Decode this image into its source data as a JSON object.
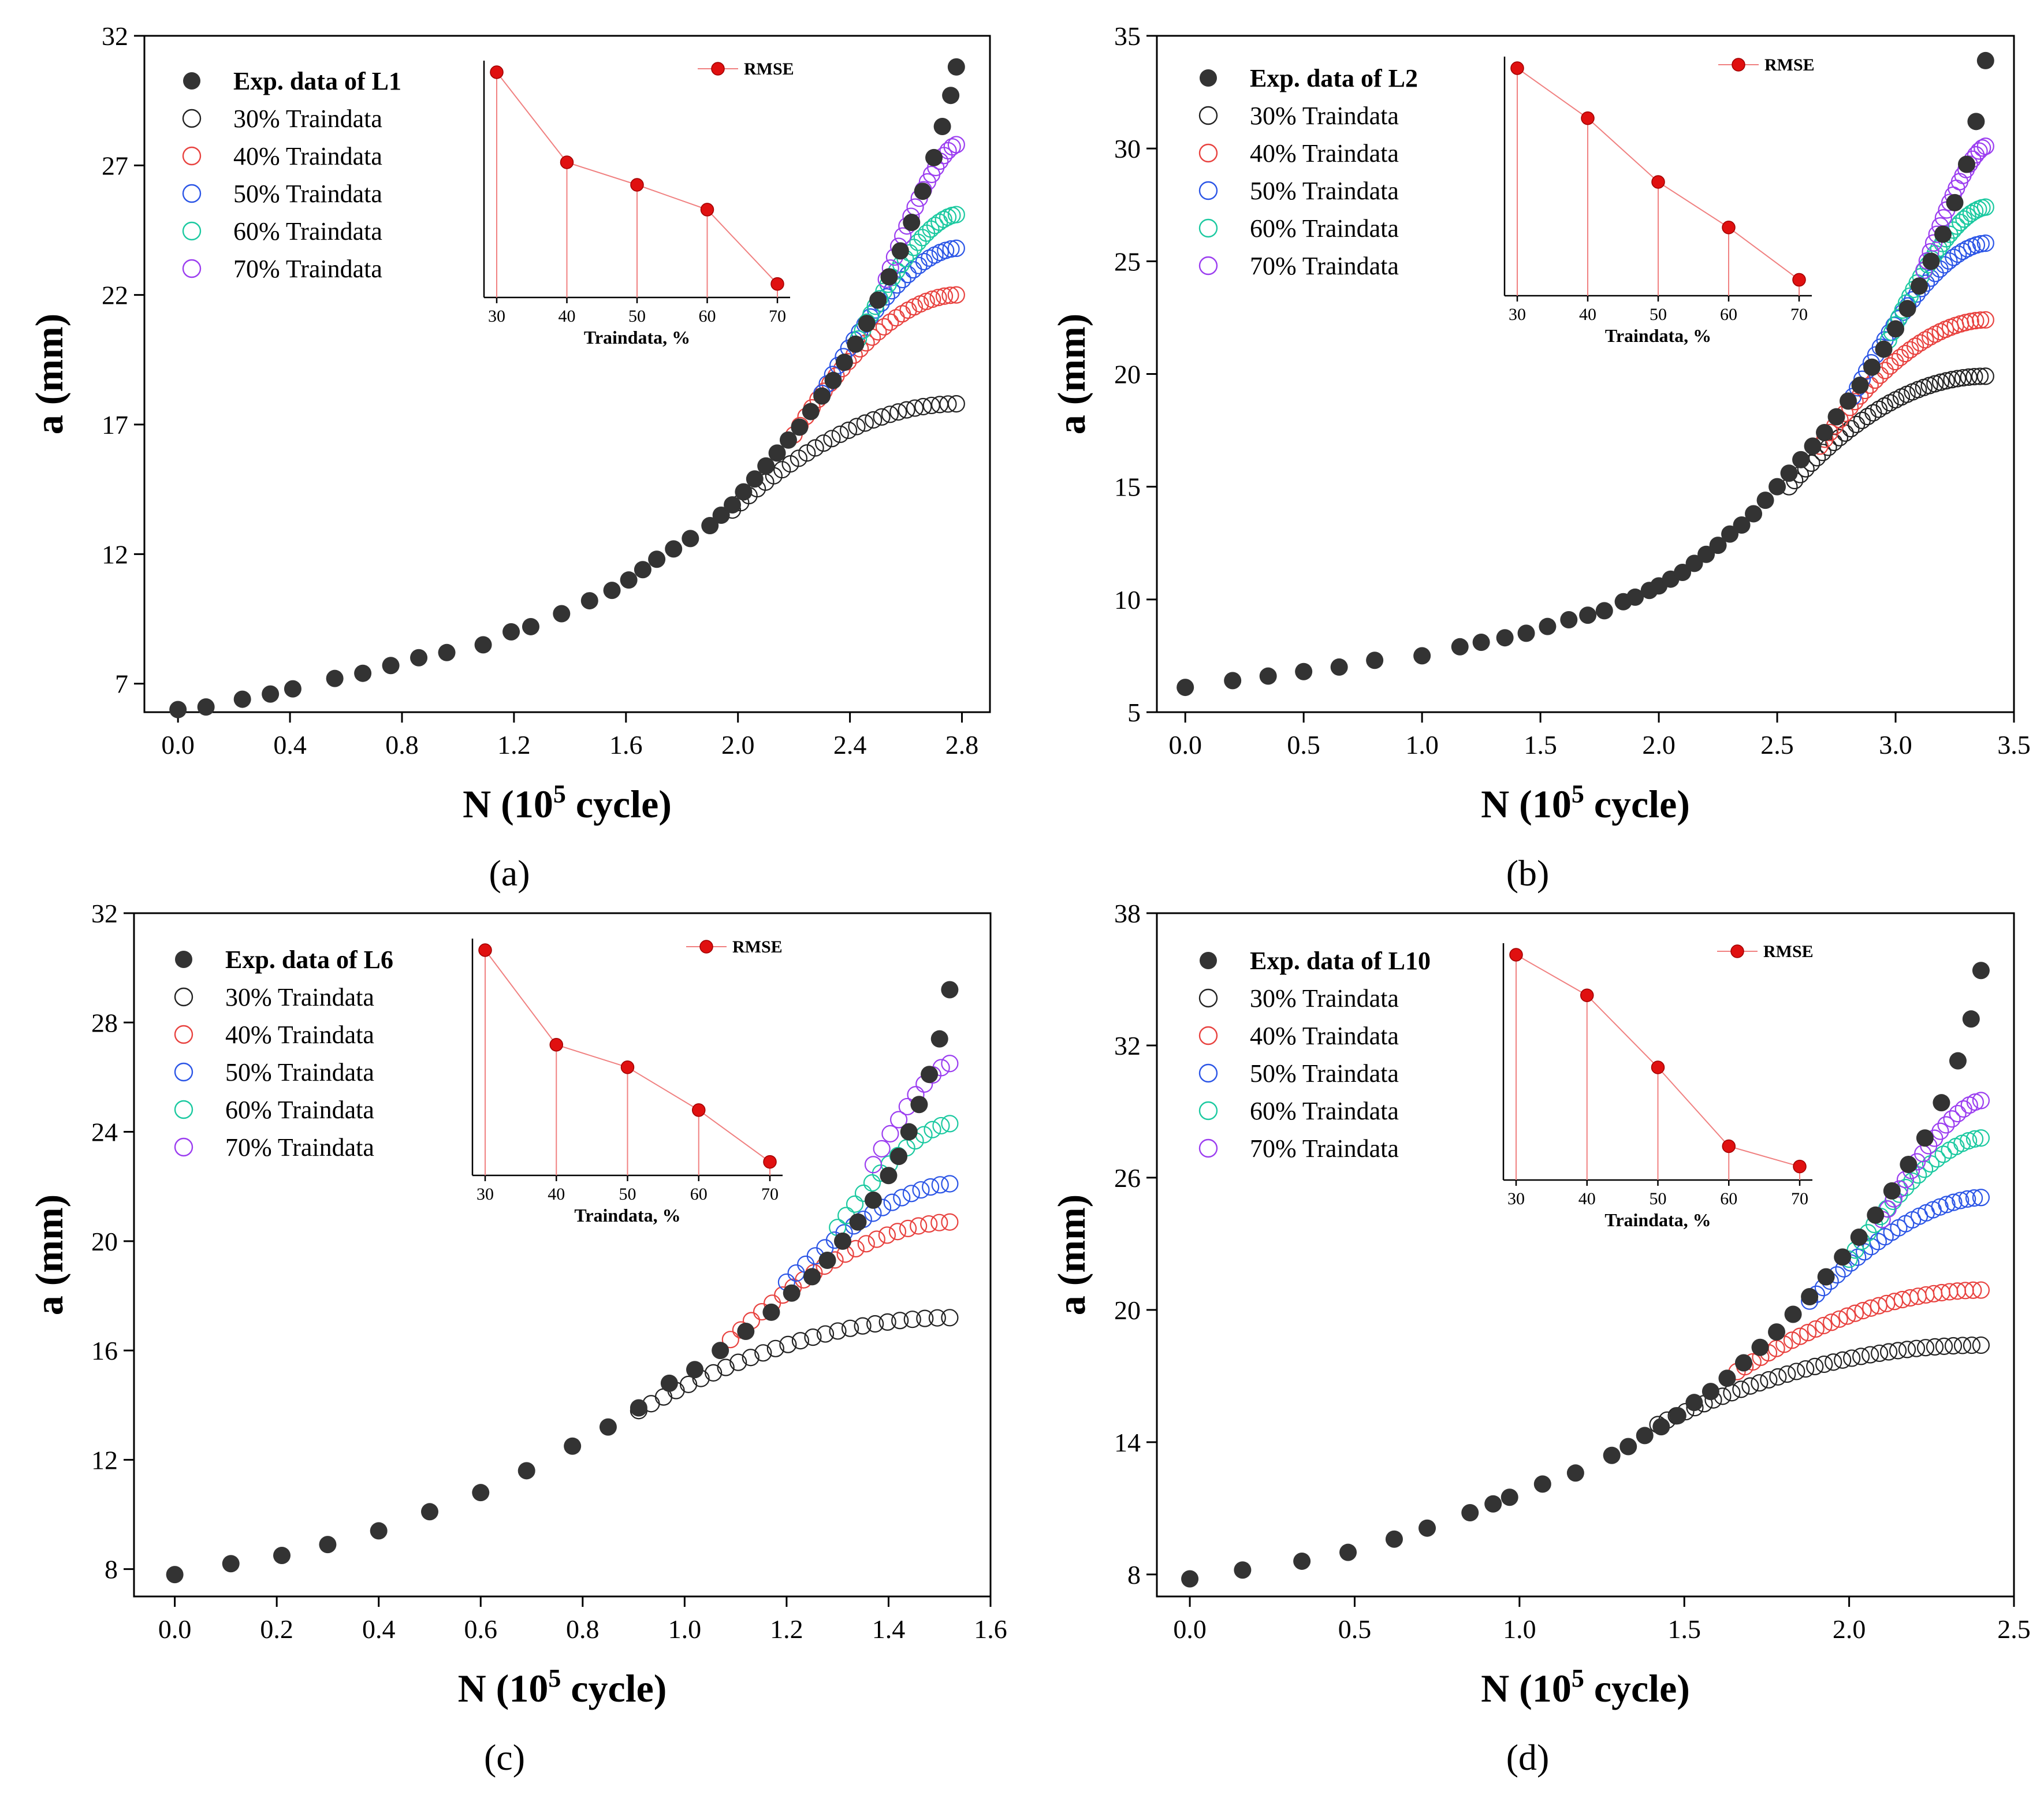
{
  "chart_data": [
    {
      "id": "a",
      "type": "scatter",
      "caption": "(a)",
      "xlabel": "N (10",
      "xlabel_sup": "5",
      "xlabel_end": " cycle)",
      "ylabel": "a (mm)",
      "xlim": [
        -0.12,
        2.9
      ],
      "ylim": [
        5.9,
        32
      ],
      "xticks": [
        0.0,
        0.4,
        0.8,
        1.2,
        1.6,
        2.0,
        2.4,
        2.8
      ],
      "xtick_labels": [
        "0.0",
        "0.4",
        "0.8",
        "1.2",
        "1.6",
        "2.0",
        "2.4",
        "2.8"
      ],
      "yticks": [
        7,
        12,
        17,
        22,
        27,
        32
      ],
      "ytick_labels": [
        "7",
        "12",
        "17",
        "22",
        "27",
        "32"
      ],
      "legend": [
        {
          "label": "Exp. data of L1",
          "color": "#333333",
          "filled": true,
          "bold": true
        },
        {
          "label": "30%  Traindata",
          "color": "#222222",
          "filled": false
        },
        {
          "label": "40%  Traindata",
          "color": "#e8423f",
          "filled": false
        },
        {
          "label": "50%  Traindata",
          "color": "#2b55e6",
          "filled": false
        },
        {
          "label": "60%  Traindata",
          "color": "#1bc9a0",
          "filled": false
        },
        {
          "label": "70%  Traindata",
          "color": "#9b3df0",
          "filled": false
        }
      ],
      "exp": {
        "x": [
          0,
          0.1,
          0.23,
          0.33,
          0.41,
          0.56,
          0.66,
          0.76,
          0.86,
          0.96,
          1.09,
          1.19,
          1.26,
          1.37,
          1.47,
          1.55,
          1.61,
          1.66,
          1.71,
          1.77,
          1.83,
          1.9,
          1.94,
          1.98,
          2.02,
          2.06,
          2.1,
          2.14,
          2.18,
          2.22,
          2.26,
          2.3,
          2.34,
          2.38,
          2.42,
          2.46,
          2.5,
          2.54,
          2.58,
          2.62,
          2.66,
          2.7,
          2.73,
          2.76,
          2.78
        ],
        "y": [
          6.0,
          6.1,
          6.4,
          6.6,
          6.8,
          7.2,
          7.4,
          7.7,
          8.0,
          8.2,
          8.5,
          9.0,
          9.2,
          9.7,
          10.2,
          10.6,
          11.0,
          11.4,
          11.8,
          12.2,
          12.6,
          13.1,
          13.5,
          13.9,
          14.4,
          14.9,
          15.4,
          15.9,
          16.4,
          16.9,
          17.5,
          18.1,
          18.7,
          19.4,
          20.1,
          20.9,
          21.8,
          22.7,
          23.7,
          24.8,
          26.0,
          27.3,
          28.5,
          29.7,
          30.8
        ]
      },
      "series": [
        {
          "name": "30%  Traindata",
          "start": 1.98,
          "end": 2.78,
          "y0": 13.7,
          "y1": 17.8,
          "curv": 0.6,
          "n": 28
        },
        {
          "name": "40%  Traindata",
          "start": 2.2,
          "end": 2.78,
          "y0": 16.6,
          "y1": 22.0,
          "curv": 0.55,
          "n": 28
        },
        {
          "name": "50%  Traindata",
          "start": 2.3,
          "end": 2.78,
          "y0": 18.2,
          "y1": 23.8,
          "curv": 0.45,
          "n": 26
        },
        {
          "name": "60%  Traindata",
          "start": 2.43,
          "end": 2.78,
          "y0": 20.3,
          "y1": 25.1,
          "curv": 0.4,
          "n": 24
        },
        {
          "name": "70%  Traindata",
          "start": 2.53,
          "end": 2.78,
          "y0": 22.6,
          "y1": 27.8,
          "curv": 0.3,
          "n": 18
        }
      ],
      "inset": {
        "legend_label": "RMSE",
        "xlabel": "Traindata, %",
        "x": [
          30,
          40,
          50,
          60,
          70
        ],
        "xtick_labels": [
          "30",
          "40",
          "50",
          "60",
          "70"
        ],
        "values": [
          1.0,
          0.6,
          0.5,
          0.39,
          0.06
        ]
      }
    },
    {
      "id": "b",
      "type": "scatter",
      "caption": "(b)",
      "xlabel": "N (10",
      "xlabel_sup": "5",
      "xlabel_end": " cycle)",
      "ylabel": "a (mm)",
      "xlim": [
        -0.12,
        3.5
      ],
      "ylim": [
        5,
        35
      ],
      "xticks": [
        0.0,
        0.5,
        1.0,
        1.5,
        2.0,
        2.5,
        3.0,
        3.5
      ],
      "xtick_labels": [
        "0.0",
        "0.5",
        "1.0",
        "1.5",
        "2.0",
        "2.5",
        "3.0",
        "3.5"
      ],
      "yticks": [
        5,
        10,
        15,
        20,
        25,
        30,
        35
      ],
      "ytick_labels": [
        "5",
        "10",
        "15",
        "20",
        "25",
        "30",
        "35"
      ],
      "legend": [
        {
          "label": "Exp. data of L2",
          "color": "#333333",
          "filled": true,
          "bold": true
        },
        {
          "label": "30%  Traindata",
          "color": "#222222",
          "filled": false
        },
        {
          "label": "40%  Traindata",
          "color": "#e8423f",
          "filled": false
        },
        {
          "label": "50%  Traindata",
          "color": "#2b55e6",
          "filled": false
        },
        {
          "label": "60%  Traindata",
          "color": "#1bc9a0",
          "filled": false
        },
        {
          "label": "70%  Traindata",
          "color": "#9b3df0",
          "filled": false
        }
      ],
      "exp": {
        "x": [
          0,
          0.2,
          0.35,
          0.5,
          0.65,
          0.8,
          1.0,
          1.16,
          1.25,
          1.35,
          1.44,
          1.53,
          1.62,
          1.7,
          1.77,
          1.85,
          1.9,
          1.96,
          2.0,
          2.05,
          2.1,
          2.15,
          2.2,
          2.25,
          2.3,
          2.35,
          2.4,
          2.45,
          2.5,
          2.55,
          2.6,
          2.65,
          2.7,
          2.75,
          2.8,
          2.85,
          2.9,
          2.95,
          3.0,
          3.05,
          3.1,
          3.15,
          3.2,
          3.25,
          3.3,
          3.34,
          3.38
        ],
        "y": [
          6.1,
          6.4,
          6.6,
          6.8,
          7.0,
          7.3,
          7.5,
          7.9,
          8.1,
          8.3,
          8.5,
          8.8,
          9.1,
          9.3,
          9.5,
          9.9,
          10.1,
          10.4,
          10.6,
          10.9,
          11.2,
          11.6,
          12.0,
          12.4,
          12.9,
          13.3,
          13.8,
          14.4,
          15.0,
          15.6,
          16.2,
          16.8,
          17.4,
          18.1,
          18.8,
          19.5,
          20.3,
          21.1,
          22.0,
          22.9,
          23.9,
          25.0,
          26.2,
          27.6,
          29.3,
          31.2,
          33.9
        ]
      },
      "series": [
        {
          "name": "30%  Traindata",
          "start": 2.55,
          "end": 3.38,
          "y0": 15.0,
          "y1": 19.9,
          "curv": 0.65,
          "n": 36
        },
        {
          "name": "40%  Traindata",
          "start": 2.68,
          "end": 3.38,
          "y0": 16.8,
          "y1": 22.4,
          "curv": 0.55,
          "n": 34
        },
        {
          "name": "50%  Traindata",
          "start": 2.82,
          "end": 3.38,
          "y0": 19.0,
          "y1": 25.8,
          "curv": 0.45,
          "n": 30
        },
        {
          "name": "60%  Traindata",
          "start": 2.97,
          "end": 3.38,
          "y0": 21.5,
          "y1": 27.4,
          "curv": 0.4,
          "n": 28
        },
        {
          "name": "70%  Traindata",
          "start": 3.12,
          "end": 3.38,
          "y0": 24.6,
          "y1": 30.1,
          "curv": 0.3,
          "n": 20
        }
      ],
      "inset": {
        "legend_label": "RMSE",
        "xlabel": "Traindata, %",
        "x": [
          30,
          40,
          50,
          60,
          70
        ],
        "xtick_labels": [
          "30",
          "40",
          "50",
          "60",
          "70"
        ],
        "values": [
          1.0,
          0.78,
          0.5,
          0.3,
          0.07
        ]
      }
    },
    {
      "id": "c",
      "type": "scatter",
      "caption": "(c)",
      "xlabel": "N (10",
      "xlabel_sup": "5",
      "xlabel_end": " cycle)",
      "ylabel": "a (mm)",
      "xlim": [
        -0.08,
        1.6
      ],
      "ylim": [
        7,
        32
      ],
      "xticks": [
        0.0,
        0.2,
        0.4,
        0.6,
        0.8,
        1.0,
        1.2,
        1.4,
        1.6
      ],
      "xtick_labels": [
        "0.0",
        "0.2",
        "0.4",
        "0.6",
        "0.8",
        "1.0",
        "1.2",
        "1.4",
        "1.6"
      ],
      "yticks": [
        8,
        12,
        16,
        20,
        24,
        28,
        32
      ],
      "ytick_labels": [
        "8",
        "12",
        "16",
        "20",
        "24",
        "28",
        "32"
      ],
      "legend": [
        {
          "label": "Exp. data of L6",
          "color": "#333333",
          "filled": true,
          "bold": true
        },
        {
          "label": "30%  Traindata",
          "color": "#222222",
          "filled": false
        },
        {
          "label": "40%  Traindata",
          "color": "#e8423f",
          "filled": false
        },
        {
          "label": "50%  Traindata",
          "color": "#2b55e6",
          "filled": false
        },
        {
          "label": "60%  Traindata",
          "color": "#1bc9a0",
          "filled": false
        },
        {
          "label": "70%  Traindata",
          "color": "#9b3df0",
          "filled": false
        }
      ],
      "exp": {
        "x": [
          0,
          0.11,
          0.21,
          0.3,
          0.4,
          0.5,
          0.6,
          0.69,
          0.78,
          0.85,
          0.91,
          0.97,
          1.02,
          1.07,
          1.12,
          1.17,
          1.21,
          1.25,
          1.28,
          1.31,
          1.34,
          1.37,
          1.4,
          1.42,
          1.44,
          1.46,
          1.48,
          1.5,
          1.52
        ],
        "y": [
          7.8,
          8.2,
          8.5,
          8.9,
          9.4,
          10.1,
          10.8,
          11.6,
          12.5,
          13.2,
          13.9,
          14.8,
          15.3,
          16.0,
          16.7,
          17.4,
          18.1,
          18.7,
          19.3,
          20.0,
          20.7,
          21.5,
          22.4,
          23.1,
          24.0,
          25.0,
          26.1,
          27.4,
          29.2
        ]
      },
      "series": [
        {
          "name": "30%  Traindata",
          "start": 0.91,
          "end": 1.52,
          "y0": 13.8,
          "y1": 17.2,
          "curv": 0.6,
          "n": 26
        },
        {
          "name": "40%  Traindata",
          "start": 1.09,
          "end": 1.52,
          "y0": 16.4,
          "y1": 20.7,
          "curv": 0.5,
          "n": 22
        },
        {
          "name": "50%  Traindata",
          "start": 1.2,
          "end": 1.52,
          "y0": 18.5,
          "y1": 22.1,
          "curv": 0.4,
          "n": 18
        },
        {
          "name": "60%  Traindata",
          "start": 1.3,
          "end": 1.52,
          "y0": 20.5,
          "y1": 24.3,
          "curv": 0.35,
          "n": 14
        },
        {
          "name": "70%  Traindata",
          "start": 1.37,
          "end": 1.52,
          "y0": 22.8,
          "y1": 26.5,
          "curv": 0.3,
          "n": 10
        }
      ],
      "inset": {
        "legend_label": "RMSE",
        "xlabel": "Traindata, %",
        "x": [
          30,
          40,
          50,
          60,
          70
        ],
        "xtick_labels": [
          "30",
          "40",
          "50",
          "60",
          "70"
        ],
        "values": [
          1.0,
          0.58,
          0.48,
          0.29,
          0.06
        ]
      }
    },
    {
      "id": "d",
      "type": "scatter",
      "caption": "(d)",
      "xlabel": "N (10",
      "xlabel_sup": "5",
      "xlabel_end": " cycle)",
      "ylabel": "a (mm)",
      "xlim": [
        -0.1,
        2.5
      ],
      "ylim": [
        7,
        38
      ],
      "xticks": [
        0.0,
        0.5,
        1.0,
        1.5,
        2.0,
        2.5
      ],
      "xtick_labels": [
        "0.0",
        "0.5",
        "1.0",
        "1.5",
        "2.0",
        "2.5"
      ],
      "yticks": [
        8,
        14,
        20,
        26,
        32,
        38
      ],
      "ytick_labels": [
        "8",
        "14",
        "20",
        "26",
        "32",
        "38"
      ],
      "legend": [
        {
          "label": "Exp. data of L10",
          "color": "#333333",
          "filled": true,
          "bold": true
        },
        {
          "label": "30%  Traindata",
          "color": "#222222",
          "filled": false
        },
        {
          "label": "40%  Traindata",
          "color": "#e8423f",
          "filled": false
        },
        {
          "label": "50%  Traindata",
          "color": "#2b55e6",
          "filled": false
        },
        {
          "label": "60%  Traindata",
          "color": "#1bc9a0",
          "filled": false
        },
        {
          "label": "70%  Traindata",
          "color": "#9b3df0",
          "filled": false
        }
      ],
      "exp": {
        "x": [
          0,
          0.16,
          0.34,
          0.48,
          0.62,
          0.72,
          0.85,
          0.92,
          0.97,
          1.07,
          1.17,
          1.28,
          1.33,
          1.38,
          1.43,
          1.48,
          1.53,
          1.58,
          1.63,
          1.68,
          1.73,
          1.78,
          1.83,
          1.88,
          1.93,
          1.98,
          2.03,
          2.08,
          2.13,
          2.18,
          2.23,
          2.28,
          2.33,
          2.37,
          2.4
        ],
        "y": [
          7.8,
          8.2,
          8.6,
          9.0,
          9.6,
          10.1,
          10.8,
          11.2,
          11.5,
          12.1,
          12.6,
          13.4,
          13.8,
          14.3,
          14.7,
          15.2,
          15.8,
          16.3,
          16.9,
          17.6,
          18.3,
          19.0,
          19.8,
          20.6,
          21.5,
          22.4,
          23.3,
          24.3,
          25.4,
          26.6,
          27.8,
          29.4,
          31.3,
          33.2,
          35.4
        ]
      },
      "series": [
        {
          "name": "30%  Traindata",
          "start": 1.42,
          "end": 2.4,
          "y0": 14.8,
          "y1": 18.4,
          "curv": 0.65,
          "n": 36
        },
        {
          "name": "40%  Traindata",
          "start": 1.66,
          "end": 2.4,
          "y0": 17.2,
          "y1": 20.9,
          "curv": 0.6,
          "n": 32
        },
        {
          "name": "50%  Traindata",
          "start": 1.88,
          "end": 2.4,
          "y0": 20.4,
          "y1": 25.1,
          "curv": 0.45,
          "n": 26
        },
        {
          "name": "60%  Traindata",
          "start": 2.0,
          "end": 2.4,
          "y0": 22.3,
          "y1": 27.8,
          "curv": 0.4,
          "n": 22
        },
        {
          "name": "70%  Traindata",
          "start": 2.1,
          "end": 2.4,
          "y0": 24.1,
          "y1": 29.5,
          "curv": 0.35,
          "n": 18
        }
      ],
      "inset": {
        "legend_label": "RMSE",
        "xlabel": "Traindata, %",
        "x": [
          30,
          40,
          50,
          60,
          70
        ],
        "xtick_labels": [
          "30",
          "40",
          "50",
          "60",
          "70"
        ],
        "values": [
          1.0,
          0.82,
          0.5,
          0.15,
          0.06
        ]
      }
    }
  ]
}
